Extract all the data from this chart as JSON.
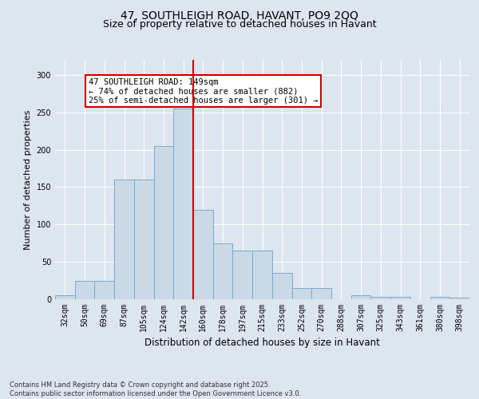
{
  "title": "47, SOUTHLEIGH ROAD, HAVANT, PO9 2QQ",
  "subtitle": "Size of property relative to detached houses in Havant",
  "xlabel": "Distribution of detached houses by size in Havant",
  "ylabel": "Number of detached properties",
  "bins": [
    "32sqm",
    "50sqm",
    "69sqm",
    "87sqm",
    "105sqm",
    "124sqm",
    "142sqm",
    "160sqm",
    "178sqm",
    "197sqm",
    "215sqm",
    "233sqm",
    "252sqm",
    "270sqm",
    "288sqm",
    "307sqm",
    "325sqm",
    "343sqm",
    "361sqm",
    "380sqm",
    "398sqm"
  ],
  "values": [
    5,
    25,
    25,
    160,
    160,
    205,
    255,
    120,
    75,
    65,
    65,
    35,
    15,
    15,
    0,
    5,
    3,
    3,
    0,
    3,
    2
  ],
  "bar_color": "#c9d9e8",
  "bar_edge_color": "#7aaac8",
  "vline_color": "#cc0000",
  "vline_bin_index": 7,
  "annotation_text": "47 SOUTHLEIGH ROAD: 149sqm\n← 74% of detached houses are smaller (882)\n25% of semi-detached houses are larger (301) →",
  "annotation_box_color": "#ffffff",
  "annotation_box_edge": "#cc0000",
  "background_color": "#dde5ef",
  "plot_bg_color": "#dde5ef",
  "footer": "Contains HM Land Registry data © Crown copyright and database right 2025.\nContains public sector information licensed under the Open Government Licence v3.0.",
  "ylim": [
    0,
    320
  ],
  "yticks": [
    0,
    50,
    100,
    150,
    200,
    250,
    300
  ],
  "title_fontsize": 10,
  "subtitle_fontsize": 9,
  "xlabel_fontsize": 8.5,
  "ylabel_fontsize": 8,
  "tick_fontsize": 7,
  "footer_fontsize": 6,
  "annot_fontsize": 7.5
}
